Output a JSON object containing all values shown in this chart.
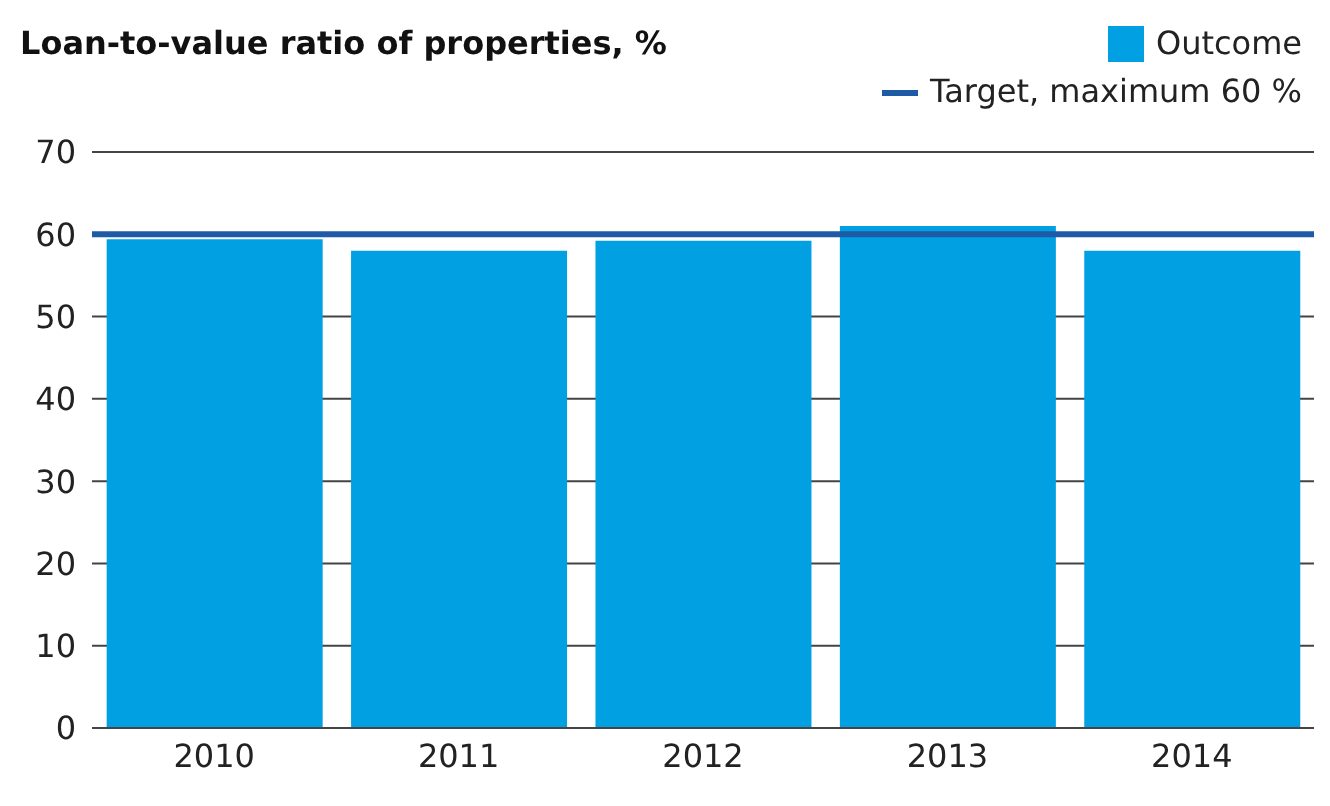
{
  "chart_data": {
    "type": "bar",
    "title": "Loan-to-value ratio of properties, %",
    "categories": [
      "2010",
      "2011",
      "2012",
      "2013",
      "2014"
    ],
    "series": [
      {
        "name": "Outcome",
        "color": "#00a0e3",
        "values": [
          59.4,
          58.0,
          59.2,
          61.0,
          58.0
        ]
      }
    ],
    "ylim": [
      0,
      70
    ],
    "yticks": [
      0,
      10,
      20,
      30,
      40,
      50,
      60,
      70
    ],
    "grid": "y",
    "legend": "top right",
    "ref_lines": [
      {
        "axis": "y",
        "value": 60,
        "label": "Target, maximum 60 %",
        "color": "#1f5aa6"
      }
    ]
  }
}
